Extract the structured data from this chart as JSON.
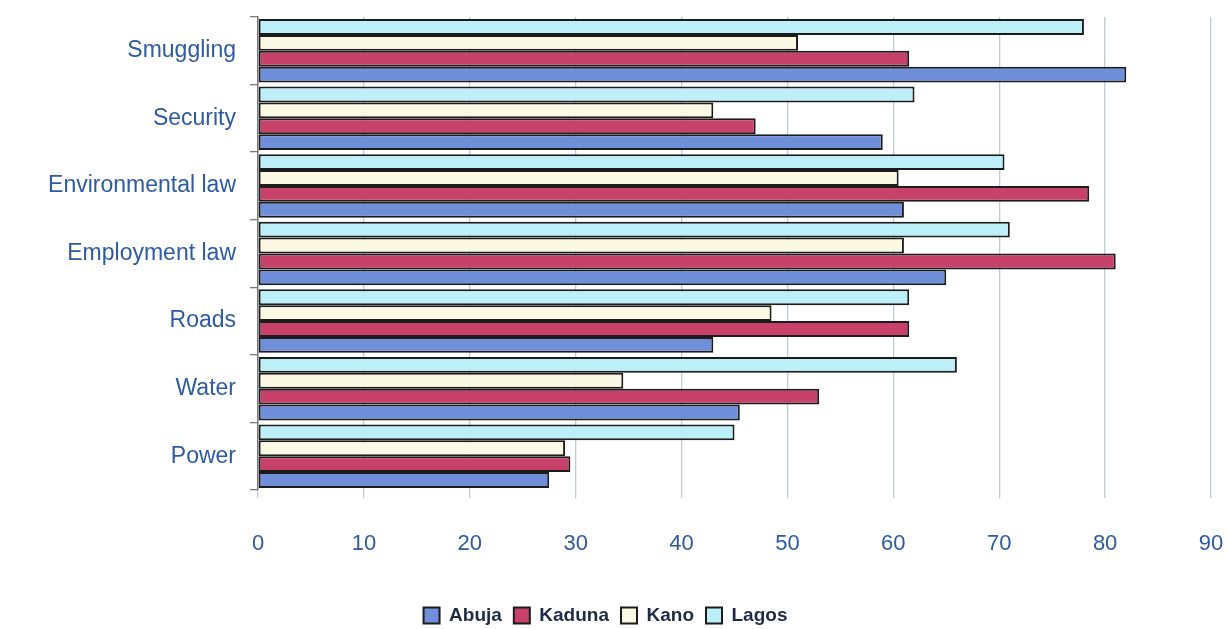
{
  "chart_data": {
    "type": "bar",
    "orientation": "horizontal",
    "categories": [
      "Smuggling",
      "Security",
      "Environmental law",
      "Employment law",
      "Roads",
      "Water",
      "Power"
    ],
    "series": [
      {
        "name": "Abuja",
        "color": "#6f8fdb",
        "values": [
          82,
          59,
          61,
          65,
          43,
          45.5,
          27.5
        ]
      },
      {
        "name": "Kaduna",
        "color": "#c8416a",
        "values": [
          61.5,
          47,
          78.5,
          81,
          61.5,
          53,
          29.5
        ]
      },
      {
        "name": "Kano",
        "color": "#fbf9e3",
        "values": [
          51,
          43,
          60.5,
          61,
          48.5,
          34.5,
          29
        ]
      },
      {
        "name": "Lagos",
        "color": "#bdeff8",
        "values": [
          78,
          62,
          70.5,
          71,
          61.5,
          66,
          45
        ]
      }
    ],
    "xlim": [
      0,
      90
    ],
    "xticks": [
      0,
      10,
      20,
      30,
      40,
      50,
      60,
      70,
      80,
      90
    ],
    "grid": "x",
    "legend": "bottom"
  }
}
